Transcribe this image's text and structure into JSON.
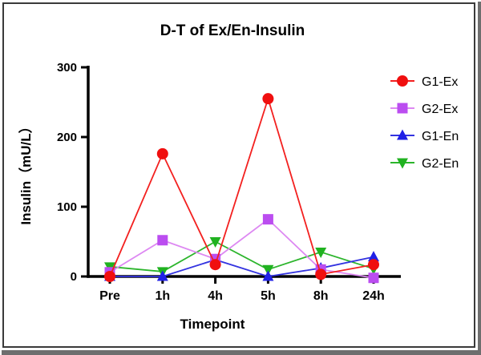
{
  "chart_data": {
    "type": "line",
    "title": "D-T of Ex/En-Insulin",
    "xlabel": "Timepoint",
    "ylabel": "Insulin（mU/L）",
    "categories": [
      "Pre",
      "1h",
      "4h",
      "5h",
      "8h",
      "24h"
    ],
    "y_ticks": [
      0,
      100,
      200,
      300
    ],
    "ylim": [
      0,
      300
    ],
    "grid": false,
    "legend_position": "right",
    "axis_color": "#000000",
    "series": [
      {
        "name": "G1-Ex",
        "marker": "circle",
        "marker_color": "#f00f0f",
        "line_color": "#f3201f",
        "values": [
          0,
          176,
          17,
          255,
          3,
          17
        ]
      },
      {
        "name": "G2-Ex",
        "marker": "square",
        "marker_color": "#bb4df0",
        "line_color": "#dd88f2",
        "values": [
          6,
          52,
          25,
          82,
          10,
          -2
        ]
      },
      {
        "name": "G1-En",
        "marker": "triangle-up",
        "marker_color": "#2020e6",
        "line_color": "#3333e0",
        "values": [
          0,
          0,
          24,
          0,
          12,
          28
        ]
      },
      {
        "name": "G2-En",
        "marker": "triangle-down",
        "marker_color": "#20b220",
        "line_color": "#2cb52c",
        "values": [
          14,
          7,
          50,
          10,
          35,
          11
        ]
      }
    ]
  }
}
